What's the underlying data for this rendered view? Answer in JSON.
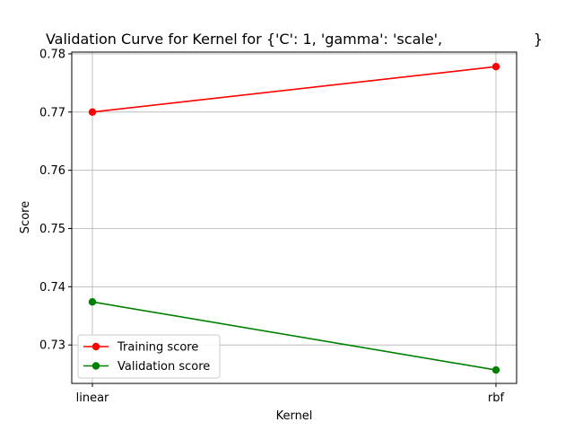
{
  "chart_data": {
    "type": "line",
    "title": "Validation Curve for Kernel for {'C': 1, 'gamma': 'scale',                    }",
    "xlabel": "Kernel",
    "ylabel": "Score",
    "categories": [
      "linear",
      "rbf"
    ],
    "ylim": [
      0.7234,
      0.7803
    ],
    "yticks": [
      "0.73",
      "0.74",
      "0.75",
      "0.76",
      "0.77",
      "0.78"
    ],
    "grid": true,
    "legend_position": "lower-left",
    "series": [
      {
        "name": "Training score",
        "values": [
          0.77,
          0.7778
        ],
        "color": "#ff0000"
      },
      {
        "name": "Validation score",
        "values": [
          0.7374,
          0.7257
        ],
        "color": "#008000"
      }
    ]
  }
}
